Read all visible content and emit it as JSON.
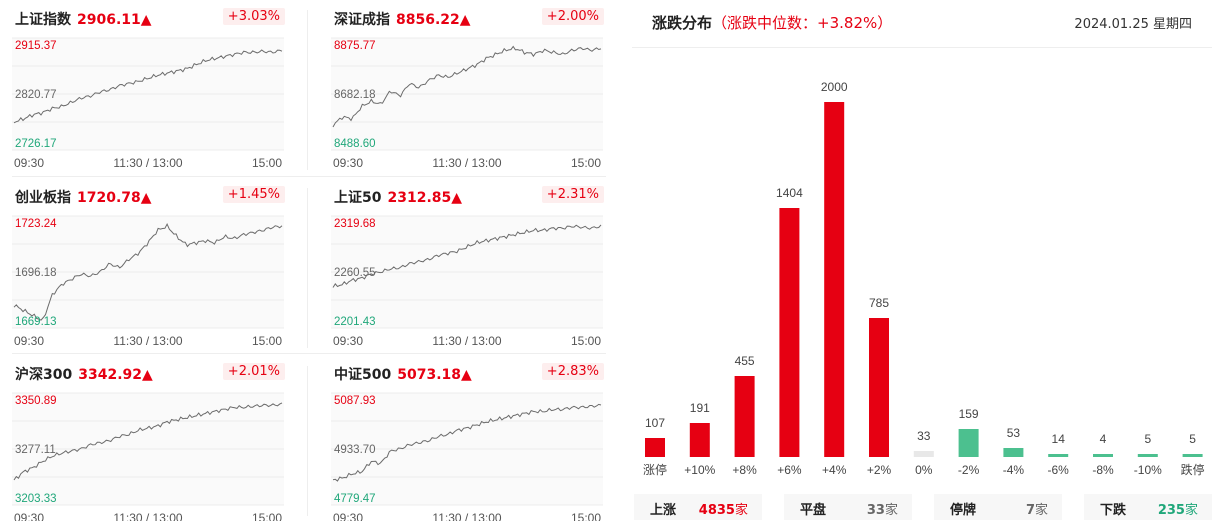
{
  "indices": [
    {
      "name": "上证指数",
      "price": "2906.11",
      "arrow": "▲",
      "change": "+3.03%",
      "y_high": "2915.37",
      "y_mid": "2820.77",
      "y_low": "2726.17",
      "times": [
        "09:30",
        "11:30 / 13:00",
        "15:00"
      ]
    },
    {
      "name": "深证成指",
      "price": "8856.22",
      "arrow": "▲",
      "change": "+2.00%",
      "y_high": "8875.77",
      "y_mid": "8682.18",
      "y_low": "8488.60",
      "times": [
        "09:30",
        "11:30 / 13:00",
        "15:00"
      ]
    },
    {
      "name": "创业板指",
      "price": "1720.78",
      "arrow": "▲",
      "change": "+1.45%",
      "y_high": "1723.24",
      "y_mid": "1696.18",
      "y_low": "1669.13",
      "times": [
        "09:30",
        "11:30 / 13:00",
        "15:00"
      ]
    },
    {
      "name": "上证50",
      "price": "2312.85",
      "arrow": "▲",
      "change": "+2.31%",
      "y_high": "2319.68",
      "y_mid": "2260.55",
      "y_low": "2201.43",
      "times": [
        "09:30",
        "11:30 / 13:00",
        "15:00"
      ]
    },
    {
      "name": "沪深300",
      "price": "3342.92",
      "arrow": "▲",
      "change": "+2.01%",
      "y_high": "3350.89",
      "y_mid": "3277.11",
      "y_low": "3203.33",
      "times": [
        "09:30",
        "11:30 / 13:00",
        "15:00"
      ]
    },
    {
      "name": "中证500",
      "price": "5073.18",
      "arrow": "▲",
      "change": "+2.83%",
      "y_high": "5087.93",
      "y_mid": "4933.70",
      "y_low": "4779.47",
      "times": [
        "09:30",
        "11:30 / 13:00",
        "15:00"
      ]
    }
  ],
  "distribution": {
    "title": "涨跌分布",
    "median": "（涨跌中位数：+3.82%）",
    "date": "2024.01.25 星期四"
  },
  "chart_data": {
    "type": "bar",
    "categories": [
      "涨停",
      "+10%",
      "+8%",
      "+6%",
      "+4%",
      "+2%",
      "0%",
      "-2%",
      "-4%",
      "-6%",
      "-8%",
      "-10%",
      "跌停"
    ],
    "values": [
      107,
      191,
      455,
      1404,
      2000,
      785,
      33,
      159,
      53,
      14,
      4,
      5,
      5
    ],
    "colors": [
      "#e60012",
      "#e60012",
      "#e60012",
      "#e60012",
      "#e60012",
      "#e60012",
      "#e8e8e8",
      "#4cc08f",
      "#4cc08f",
      "#4cc08f",
      "#4cc08f",
      "#4cc08f",
      "#4cc08f"
    ]
  },
  "summary": [
    {
      "label": "上涨",
      "value": "4835",
      "unit": "家",
      "color": "#e60012"
    },
    {
      "label": "平盘",
      "value": "33",
      "unit": "家",
      "color": "#666666"
    },
    {
      "label": "停牌",
      "value": "7",
      "unit": "家",
      "color": "#666666"
    },
    {
      "label": "下跌",
      "value": "235",
      "unit": "家",
      "color": "#20a77a"
    }
  ],
  "colors": {
    "up": "#e60012",
    "down": "#20a77a",
    "line": "#6b6b6b"
  }
}
